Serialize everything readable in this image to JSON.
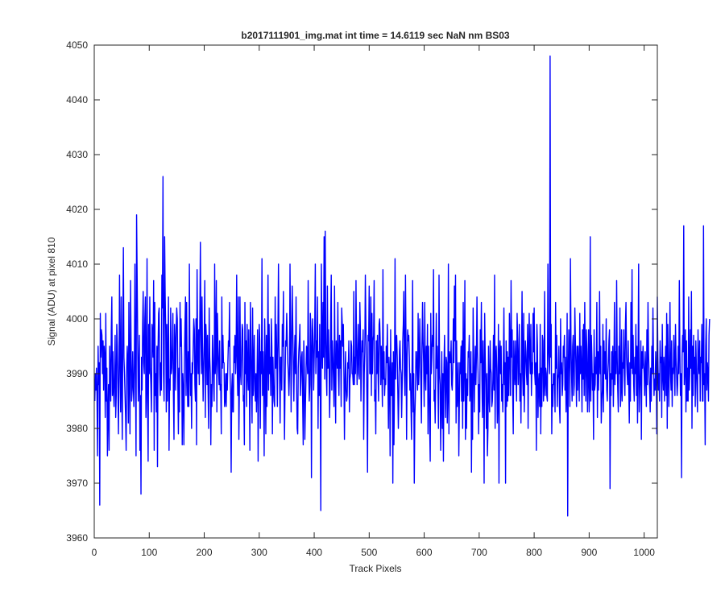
{
  "chart_data": {
    "type": "line",
    "title": "b2017111901_img.mat int time = 14.6119 sec  NaN nm BS03",
    "xlabel": "Track Pixels",
    "ylabel": "Signal (ADU) at pixel 810",
    "xlim": [
      0,
      1024
    ],
    "ylim": [
      3960,
      4050
    ],
    "xticks": [
      0,
      100,
      200,
      300,
      400,
      500,
      600,
      700,
      800,
      900,
      1000
    ],
    "yticks": [
      3960,
      3970,
      3980,
      3990,
      4000,
      4010,
      4020,
      4030,
      4040,
      4050
    ],
    "xtick_labels": [
      "0",
      "100",
      "200",
      "300",
      "400",
      "500",
      "600",
      "700",
      "800",
      "900",
      "1000"
    ],
    "ytick_labels": [
      "3960",
      "3970",
      "3980",
      "3990",
      "4000",
      "4010",
      "4020",
      "4030",
      "4040",
      "4050"
    ],
    "grid": false,
    "series": [
      {
        "color": "#0000ff",
        "x_start": 1,
        "x_step": 1,
        "y": [
          3985,
          3990,
          3987,
          3991,
          3986,
          3975,
          3995,
          3988,
          3992,
          3966,
          4001,
          3993,
          3998,
          3997,
          3990,
          3996,
          3987,
          3995,
          3993,
          3982,
          4001,
          3985,
          3991,
          3975,
          3983,
          3988,
          3976,
          3995,
          3990,
          3985,
          3998,
          4004,
          3986,
          3994,
          3987,
          3984,
          3990,
          3997,
          3982,
          3986,
          3999,
          3995,
          3988,
          3979,
          3990,
          4008,
          3992,
          3983,
          4004,
          3988,
          3978,
          3999,
          4013,
          3993,
          3990,
          3986,
          3982,
          3976,
          3991,
          3995,
          3992,
          3981,
          4003,
          3989,
          3979,
          4007,
          3995,
          3985,
          3987,
          3994,
          3988,
          3984,
          3992,
          4010,
          3990,
          3975,
          4019,
          4008,
          3996,
          3985,
          3991,
          3997,
          3976,
          3986,
          3968,
          3993,
          3987,
          3999,
          4005,
          3992,
          3990,
          4000,
          4004,
          3982,
          3987,
          4011,
          3985,
          3974,
          3999,
          3990,
          4004,
          3991,
          3988,
          3983,
          3999,
          3997,
          3993,
          4007,
          3976,
          4003,
          3986,
          3990,
          3983,
          3995,
          3973,
          3994,
          4001,
          4002,
          3990,
          3986,
          3992,
          3987,
          4008,
          4002,
          4026,
          3990,
          3985,
          4015,
          4004,
          3998,
          3983,
          3999,
          3985,
          3992,
          4004,
          3976,
          3989,
          3987,
          4002,
          3990,
          3991,
          3995,
          4001,
          3986,
          3978,
          3999,
          3996,
          3987,
          3998,
          4002,
          4000,
          3988,
          3979,
          3991,
          3983,
          4003,
          3995,
          4000,
          3993,
          3977,
          3990,
          3987,
          3977,
          3992,
          3999,
          4004,
          3986,
          4003,
          3990,
          3984,
          3994,
          3984,
          4010,
          3993,
          3986,
          3990,
          3980,
          3992,
          3990,
          3995,
          4000,
          3998,
          3988,
          3985,
          4000,
          3977,
          4009,
          3995,
          3990,
          3998,
          3988,
          4000,
          4014,
          3997,
          3990,
          4004,
          3993,
          3985,
          3991,
          3996,
          4007,
          3982,
          3999,
          3996,
          3988,
          3997,
          3987,
          3980,
          4002,
          3993,
          3990,
          3977,
          3988,
          3984,
          3997,
          3993,
          3988,
          3985,
          4010,
          3990,
          3993,
          4007,
          3983,
          4001,
          3995,
          3991,
          3988,
          3996,
          3987,
          3988,
          3979,
          4004,
          3991,
          3997,
          3992,
          3992,
          3984,
          3985,
          3990,
          3984,
          3990,
          3987,
          3992,
          3996,
          3995,
          4003,
          3990,
          3986,
          3972,
          3987,
          3990,
          3983,
          3983,
          3995,
          3992,
          3997,
          3990,
          3994,
          4008,
          3991,
          3986,
          4004,
          3978,
          3988,
          4004,
          3990,
          3988,
          3993,
          3999,
          3998,
          3985,
          3986,
          3977,
          4003,
          3990,
          3996,
          3984,
          3999,
          3990,
          3987,
          3998,
          3989,
          3976,
          4003,
          3996,
          3988,
          3981,
          4002,
          3986,
          3991,
          3997,
          3987,
          3985,
          3990,
          3983,
          3989,
          3998,
          3974,
          3988,
          3999,
          3996,
          3980,
          3994,
          3990,
          4011,
          3986,
          3994,
          3988,
          3975,
          4000,
          3991,
          3979,
          3997,
          3984,
          3992,
          4008,
          3987,
          3999,
          3990,
          3993,
          3986,
          4000,
          3995,
          3979,
          3993,
          3988,
          3985,
          3984,
          4004,
          3991,
          3999,
          3993,
          3984,
          3997,
          4010,
          3995,
          3990,
          3981,
          3993,
          3993,
          3987,
          3999,
          3995,
          4005,
          3989,
          3978,
          3988,
          3996,
          3995,
          4001,
          3996,
          3992,
          3990,
          3986,
          3990,
          4010,
          3997,
          3983,
          3996,
          4006,
          3999,
          3991,
          3985,
          3993,
          3997,
          3990,
          4004,
          3988,
          3980,
          3979,
          3991,
          3994,
          3996,
          3999,
          3986,
          3989,
          3993,
          3994,
          3985,
          3977,
          3996,
          3991,
          3978,
          3984,
          3989,
          3995,
          3994,
          3990,
          4007,
          3991,
          3985,
          3988,
          4001,
          3998,
          3971,
          3994,
          4000,
          3995,
          3987,
          3993,
          3999,
          4010,
          3990,
          3996,
          3993,
          4004,
          3980,
          3994,
          3986,
          3999,
          3986,
          3965,
          4010,
          3997,
          3991,
          4003,
          3993,
          4015,
          3989,
          4016,
          3998,
          3990,
          3986,
          4006,
          3991,
          3998,
          3992,
          3982,
          3988,
          4000,
          4008,
          3987,
          3996,
          3993,
          3989,
          3984,
          4006,
          3990,
          3981,
          3996,
          3994,
          3991,
          4003,
          3990,
          3986,
          3997,
          3991,
          3996,
          3984,
          4002,
          3999,
          3995,
          3999,
          3990,
          3978,
          3988,
          3994,
          3987,
          3985,
          3986,
          3992,
          3991,
          3996,
          3983,
          3989,
          3990,
          3996,
          3995,
          3990,
          3990,
          3988,
          4005,
          3988,
          3993,
          3990,
          4007,
          3995,
          3988,
          3993,
          3999,
          3990,
          3989,
          4003,
          3998,
          3985,
          3992,
          3996,
          3994,
          3998,
          3978,
          3990,
          3994,
          4008,
          3999,
          3993,
          3984,
          3972,
          3997,
          3996,
          4006,
          3990,
          3990,
          4004,
          3986,
          4001,
          3990,
          3996,
          3997,
          4007,
          3985,
          3987,
          3979,
          3996,
          3990,
          3997,
          3991,
          3985,
          3999,
          4000,
          3996,
          3988,
          3995,
          3991,
          3984,
          4009,
          3989,
          3994,
          3986,
          3989,
          3988,
          3995,
          3992,
          3999,
          3990,
          3980,
          3993,
          3990,
          3975,
          3998,
          3986,
          3986,
          3992,
          3970,
          3994,
          3977,
          3988,
          4011,
          3989,
          3996,
          3997,
          3993,
          3987,
          3980,
          3986,
          3994,
          3996,
          3991,
          3990,
          3982,
          3988,
          3996,
          3999,
          4005,
          3990,
          3986,
          4008,
          3995,
          3978,
          3993,
          3998,
          3996,
          3997,
          3993,
          3987,
          3990,
          3984,
          3978,
          3992,
          4007,
          3983,
          3990,
          3970,
          3982,
          3986,
          3994,
          3994,
          3990,
          3987,
          4001,
          3988,
          3992,
          4000,
          3994,
          3988,
          3981,
          3995,
          4003,
          3996,
          3992,
          3984,
          4003,
          3990,
          3987,
          3995,
          3990,
          3999,
          3979,
          3995,
          3988,
          3980,
          3974,
          4001,
          3990,
          3993,
          3997,
          3995,
          4009,
          3985,
          3987,
          3981,
          3990,
          4001,
          3991,
          3995,
          3988,
          3980,
          4008,
          3990,
          3988,
          3976,
          3985,
          3994,
          3980,
          3990,
          3974,
          3991,
          3997,
          3988,
          3982,
          3993,
          3992,
          3981,
          3986,
          4010,
          3979,
          3994,
          3992,
          3992,
          3996,
          3988,
          3987,
          3991,
          4000,
          3992,
          4006,
          3996,
          4008,
          3981,
          3996,
          3984,
          3987,
          3992,
          3975,
          3985,
          3992,
          3990,
          3995,
          3985,
          3996,
          3980,
          4003,
          3985,
          3992,
          4007,
          3978,
          3990,
          3980,
          3989,
          3986,
          3994,
          3993,
          3997,
          3985,
          3988,
          3994,
          3972,
          3990,
          3978,
          4002,
          3993,
          3983,
          3990,
          3995,
          3988,
          3993,
          4004,
          3994,
          3990,
          3979,
          3988,
          3983,
          3998,
          3992,
          4003,
          3989,
          3982,
          3996,
          3990,
          3970,
          4001,
          3993,
          3988,
          3980,
          3990,
          3975,
          3980,
          3995,
          3986,
          3983,
          3996,
          3991,
          3990,
          3984,
          3985,
          3989,
          3997,
          3987,
          4008,
          3980,
          3993,
          3995,
          3991,
          3981,
          3985,
          3999,
          3970,
          3994,
          3996,
          3990,
          3995,
          3985,
          3988,
          3983,
          3992,
          4002,
          3988,
          3992,
          3970,
          3996,
          3984,
          3994,
          3985,
          3993,
          3986,
          4001,
          3994,
          3986,
          4007,
          3993,
          3998,
          3986,
          3979,
          3996,
          3991,
          3988,
          3996,
          3990,
          3985,
          4001,
          3996,
          3988,
          3992,
          3999,
          3985,
          3990,
          3981,
          3993,
          4005,
          3990,
          3986,
          4001,
          3983,
          3990,
          3996,
          3994,
          3990,
          3988,
          3999,
          3980,
          3994,
          4001,
          3993,
          3990,
          3999,
          3986,
          3992,
          3990,
          4001,
          3994,
          4002,
          3990,
          3988,
          3992,
          3976,
          3999,
          3995,
          3982,
          3988,
          3990,
          3984,
          3999,
          3979,
          3991,
          3984,
          3997,
          3996,
          3985,
          3988,
          4005,
          3986,
          3991,
          3990,
          3986,
          3985,
          4010,
          3995,
          3992,
          3990,
          4048,
          3993,
          3999,
          3979,
          3988,
          3984,
          3990,
          3988,
          3990,
          3983,
          4003,
          3991,
          3997,
          3984,
          3989,
          3990,
          3995,
          3984,
          3981,
          4000,
          3990,
          3992,
          3986,
          3988,
          3995,
          3993,
          3997,
          3987,
          3993,
          3983,
          3987,
          4001,
          3964,
          3990,
          3998,
          3993,
          3984,
          4011,
          3996,
          3990,
          3985,
          3995,
          3997,
          3986,
          3988,
          4002,
          3996,
          3991,
          3984,
          3995,
          3987,
          3995,
          3991,
          3985,
          4001,
          3990,
          3995,
          3991,
          3983,
          3998,
          3989,
          3999,
          3986,
          4003,
          3992,
          3985,
          3998,
          3994,
          3983,
          3990,
          3998,
          3983,
          3988,
          4015,
          3985,
          3997,
          3993,
          3987,
          3990,
          3978,
          3998,
          3987,
          3988,
          3993,
          3990,
          4003,
          3982,
          3994,
          3987,
          3992,
          4005,
          3990,
          3995,
          3981,
          3985,
          3987,
          3999,
          3983,
          3996,
          3990,
          3994,
          3989,
          4000,
          3987,
          3985,
          3990,
          3992,
          3996,
          3998,
          3969,
          3990,
          3986,
          3994,
          3989,
          3995,
          3984,
          3990,
          4003,
          3988,
          3994,
          3990,
          4007,
          3993,
          3987,
          3983,
          3995,
          3990,
          4002,
          3984,
          3987,
          3998,
          3985,
          3992,
          3991,
          3998,
          3990,
          3986,
          3999,
          4003,
          3993,
          3990,
          3988,
          3996,
          3988,
          3981,
          3992,
          3985,
          4003,
          3991,
          4009,
          3990,
          3997,
          3988,
          3985,
          3993,
          3990,
          3999,
          3986,
          3995,
          3981,
          3992,
          4010,
          3983,
          3987,
          3990,
          3996,
          3978,
          3994,
          3991,
          3995,
          3992,
          3990,
          3986,
          3994,
          3990,
          3984,
          3998,
          3988,
          4003,
          3994,
          3990,
          3987,
          3983,
          3991,
          3985,
          3995,
          3990,
          4002,
          3993,
          3986,
          3989,
          3987,
          3994,
          3990,
          3979,
          4004,
          3993,
          3987,
          3990,
          3985,
          3996,
          3992,
          3993,
          3982,
          3999,
          3990,
          3987,
          3993,
          3985,
          3990,
          3995,
          3986,
          4001,
          3980,
          3999,
          3991,
          3984,
          3993,
          4003,
          3990,
          3987,
          3996,
          3984,
          3991,
          3990,
          3997,
          3992,
          3986,
          3999,
          3993,
          3990,
          3986,
          3988,
          3995,
          3990,
          4007,
          3994,
          3986,
          3990,
          3971,
          3993,
          3997,
          3994,
          4017,
          3988,
          3991,
          3998,
          3983,
          3996,
          3985,
          3991,
          3985,
          4004,
          3987,
          3990,
          3998,
          3991,
          4005,
          3980,
          3995,
          3986,
          3997,
          3990,
          3993,
          3984,
          3996,
          3991,
          3987,
          3983,
          3998,
          3992,
          3990,
          3996,
          3985,
          3993,
          3992,
          3999,
          3985,
          3985,
          4017,
          3988,
          3990,
          3977,
          3995,
          4000,
          3987,
          3992,
          3990,
          3985,
          3997,
          4000
        ]
      }
    ]
  }
}
